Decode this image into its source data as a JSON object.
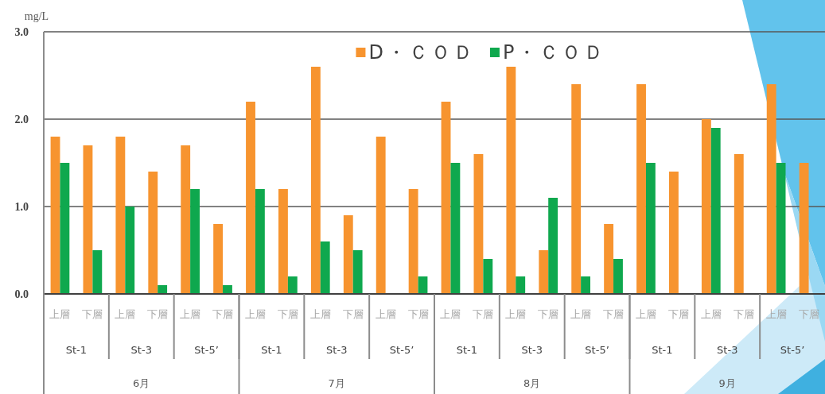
{
  "chart_data": {
    "type": "bar",
    "ylabel": "mg/L",
    "categories": [
      "上層",
      "下層",
      "上層",
      "下層",
      "上層",
      "下層",
      "上層",
      "下層",
      "上層",
      "下層",
      "上層",
      "下層",
      "上層",
      "下層",
      "上層",
      "下層",
      "上層",
      "下層",
      "上層",
      "下層",
      "上層",
      "下層",
      "上層",
      "下層"
    ],
    "series": [
      {
        "name": "D・ＣＯＤ",
        "color": "#f7942f",
        "values": [
          1.8,
          1.7,
          1.8,
          1.4,
          1.7,
          0.8,
          2.2,
          1.2,
          2.6,
          0.9,
          1.8,
          1.2,
          2.2,
          1.6,
          2.6,
          0.5,
          2.4,
          0.8,
          2.4,
          1.4,
          2.0,
          1.6,
          2.4,
          1.5
        ]
      },
      {
        "name": "P・ＣＯＤ",
        "color": "#0fa84e",
        "values": [
          1.5,
          0.5,
          1.0,
          0.1,
          1.2,
          0.1,
          1.2,
          0.2,
          0.6,
          0.5,
          null,
          0.2,
          1.5,
          0.4,
          0.2,
          1.1,
          0.2,
          0.4,
          1.5,
          null,
          1.9,
          null,
          1.5,
          null
        ]
      }
    ],
    "ylim": [
      0,
      3
    ],
    "yticks": [
      {
        "value": 0,
        "label": "0.0"
      },
      {
        "value": 1,
        "label": "1.0"
      },
      {
        "value": 2,
        "label": "2.0"
      },
      {
        "value": 3,
        "label": "3.0"
      }
    ],
    "grid": "y",
    "legend": "top",
    "annotations": [
      "St-1",
      "St-3",
      "St-5’",
      "St-1",
      "St-3",
      "St-5’",
      "St-1",
      "St-3",
      "St-5’",
      "St-1",
      "St-3",
      "St-5’",
      "6月",
      "7月",
      "8月",
      "9月"
    ]
  }
}
